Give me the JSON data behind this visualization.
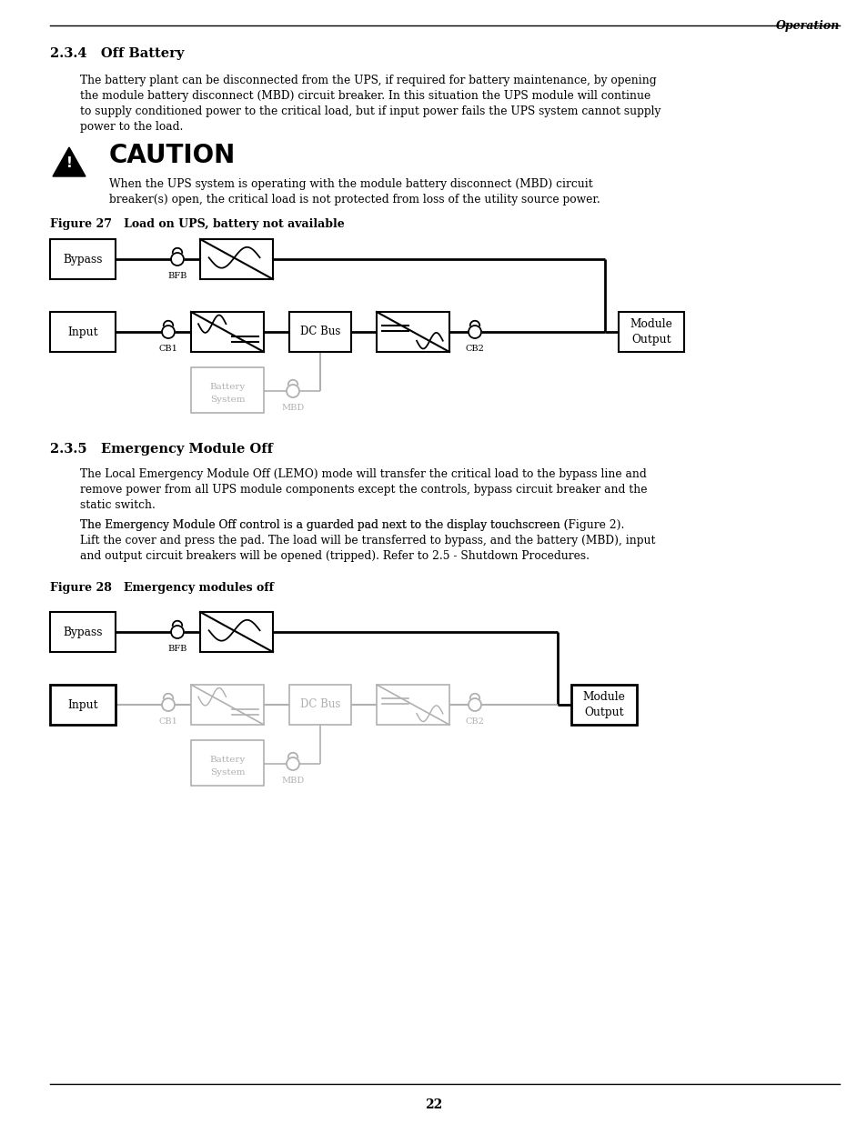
{
  "page_title": "Operation",
  "section_1_title": "2.3.4   Off Battery",
  "section_1_body_lines": [
    "The battery plant can be disconnected from the UPS, if required for battery maintenance, by opening",
    "the module battery disconnect (MBD) circuit breaker. In this situation the UPS module will continue",
    "to supply conditioned power to the critical load, but if input power fails the UPS system cannot supply",
    "power to the load."
  ],
  "caution_title": "CAUTION",
  "caution_body_lines": [
    "When the UPS system is operating with the module battery disconnect (MBD) circuit",
    "breaker(s) open, the critical load is not protected from loss of the utility source power."
  ],
  "fig27_caption": "Figure 27   Load on UPS, battery not available",
  "section_2_title": "2.3.5   Emergency Module Off",
  "section_2_body1_lines": [
    "The Local Emergency Module Off (LEMO) mode will transfer the critical load to the bypass line and",
    "remove power from all UPS module components except the controls, bypass circuit breaker and the",
    "static switch."
  ],
  "section_2_body2": "The Emergency Module Off control is a guarded pad next to the display touchscreen (",
  "section_2_body2_bold": "Figure 2",
  "section_2_body2_end": ").",
  "section_2_body3_lines": [
    "Lift the cover and press the pad. The load will be transferred to bypass, and the battery (MBD), input",
    "and output circuit breakers will be opened (tripped). Refer to "
  ],
  "section_2_body3_bold": "2.5 - Shutdown Procedures",
  "section_2_body3_end": ".",
  "fig28_caption": "Figure 28   Emergency modules off",
  "page_number": "22",
  "active_color": "#000000",
  "inactive_color": "#b0b0b0",
  "bg_color": "#ffffff",
  "ml": 0.058,
  "mr": 0.968,
  "ti": 0.092
}
